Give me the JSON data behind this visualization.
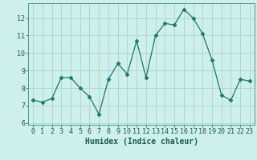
{
  "x": [
    0,
    1,
    2,
    3,
    4,
    5,
    6,
    7,
    8,
    9,
    10,
    11,
    12,
    13,
    14,
    15,
    16,
    17,
    18,
    19,
    20,
    21,
    22,
    23
  ],
  "y": [
    7.3,
    7.2,
    7.4,
    8.6,
    8.6,
    8.0,
    7.5,
    6.5,
    8.5,
    9.4,
    8.8,
    10.7,
    8.6,
    11.0,
    11.7,
    11.6,
    12.5,
    12.0,
    11.1,
    9.6,
    7.6,
    7.3,
    8.5,
    8.4
  ],
  "line_color": "#1a7a6e",
  "marker": "D",
  "marker_size": 2.5,
  "bg_color": "#cef0ea",
  "grid_color": "#b0d8d2",
  "xlabel": "Humidex (Indice chaleur)",
  "ylabel_ticks": [
    6,
    7,
    8,
    9,
    10,
    11,
    12
  ],
  "xlim": [
    -0.5,
    23.5
  ],
  "ylim": [
    5.9,
    12.85
  ],
  "tick_fontsize": 6.0,
  "xlabel_fontsize": 7.0
}
